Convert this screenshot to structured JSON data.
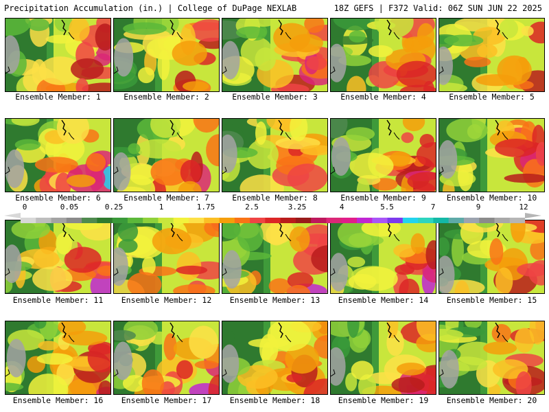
{
  "header": {
    "left_title": "Precipitation Accumulation (in.) | College of DuPage NEXLAB",
    "right_title": "18Z GEFS | F372 Valid: 06Z SUN JUN 22 2025"
  },
  "panels": [
    {
      "label": "Ensemble Member: 1"
    },
    {
      "label": "Ensemble Member: 2"
    },
    {
      "label": "Ensemble Member: 3"
    },
    {
      "label": "Ensemble Member: 4"
    },
    {
      "label": "Ensemble Member: 5"
    },
    {
      "label": "Ensemble Member: 6"
    },
    {
      "label": "Ensemble Member: 7"
    },
    {
      "label": "Ensemble Member: 8"
    },
    {
      "label": "Ensemble Member: 9"
    },
    {
      "label": "Ensemble Member: 10"
    },
    {
      "label": "Ensemble Member: 11"
    },
    {
      "label": "Ensemble Member: 12"
    },
    {
      "label": "Ensemble Member: 13"
    },
    {
      "label": "Ensemble Member: 14"
    },
    {
      "label": "Ensemble Member: 15"
    },
    {
      "label": "Ensemble Member: 16"
    },
    {
      "label": "Ensemble Member: 17"
    },
    {
      "label": "Ensemble Member: 18"
    },
    {
      "label": "Ensemble Member: 19"
    },
    {
      "label": "Ensemble Member: 20"
    }
  ],
  "colorbar": {
    "tick_labels": [
      "0",
      "0.05",
      "0.25",
      "1",
      "1.75",
      "2.5",
      "3.25",
      "4",
      "5.5",
      "7",
      "9",
      "12"
    ],
    "colors": [
      "#d8d8d8",
      "#bdbdbd",
      "#a3a3a3",
      "#8a8a8a",
      "#4f8a4f",
      "#2f7a2f",
      "#3a9a3a",
      "#5cb83a",
      "#8fd13a",
      "#c8e63c",
      "#f2f23c",
      "#fde047",
      "#fbbf24",
      "#f59e0b",
      "#f97316",
      "#ef4444",
      "#dc2626",
      "#b91c1c",
      "#991b1b",
      "#be185d",
      "#db2777",
      "#e11d8a",
      "#c026d3",
      "#a855f7",
      "#7c3aed",
      "#22d3ee",
      "#2dd4bf",
      "#14b8a6",
      "#5eaaa8",
      "#9ca3af",
      "#8b8b8b",
      "#a8a8a8",
      "#b5b5b5"
    ]
  }
}
